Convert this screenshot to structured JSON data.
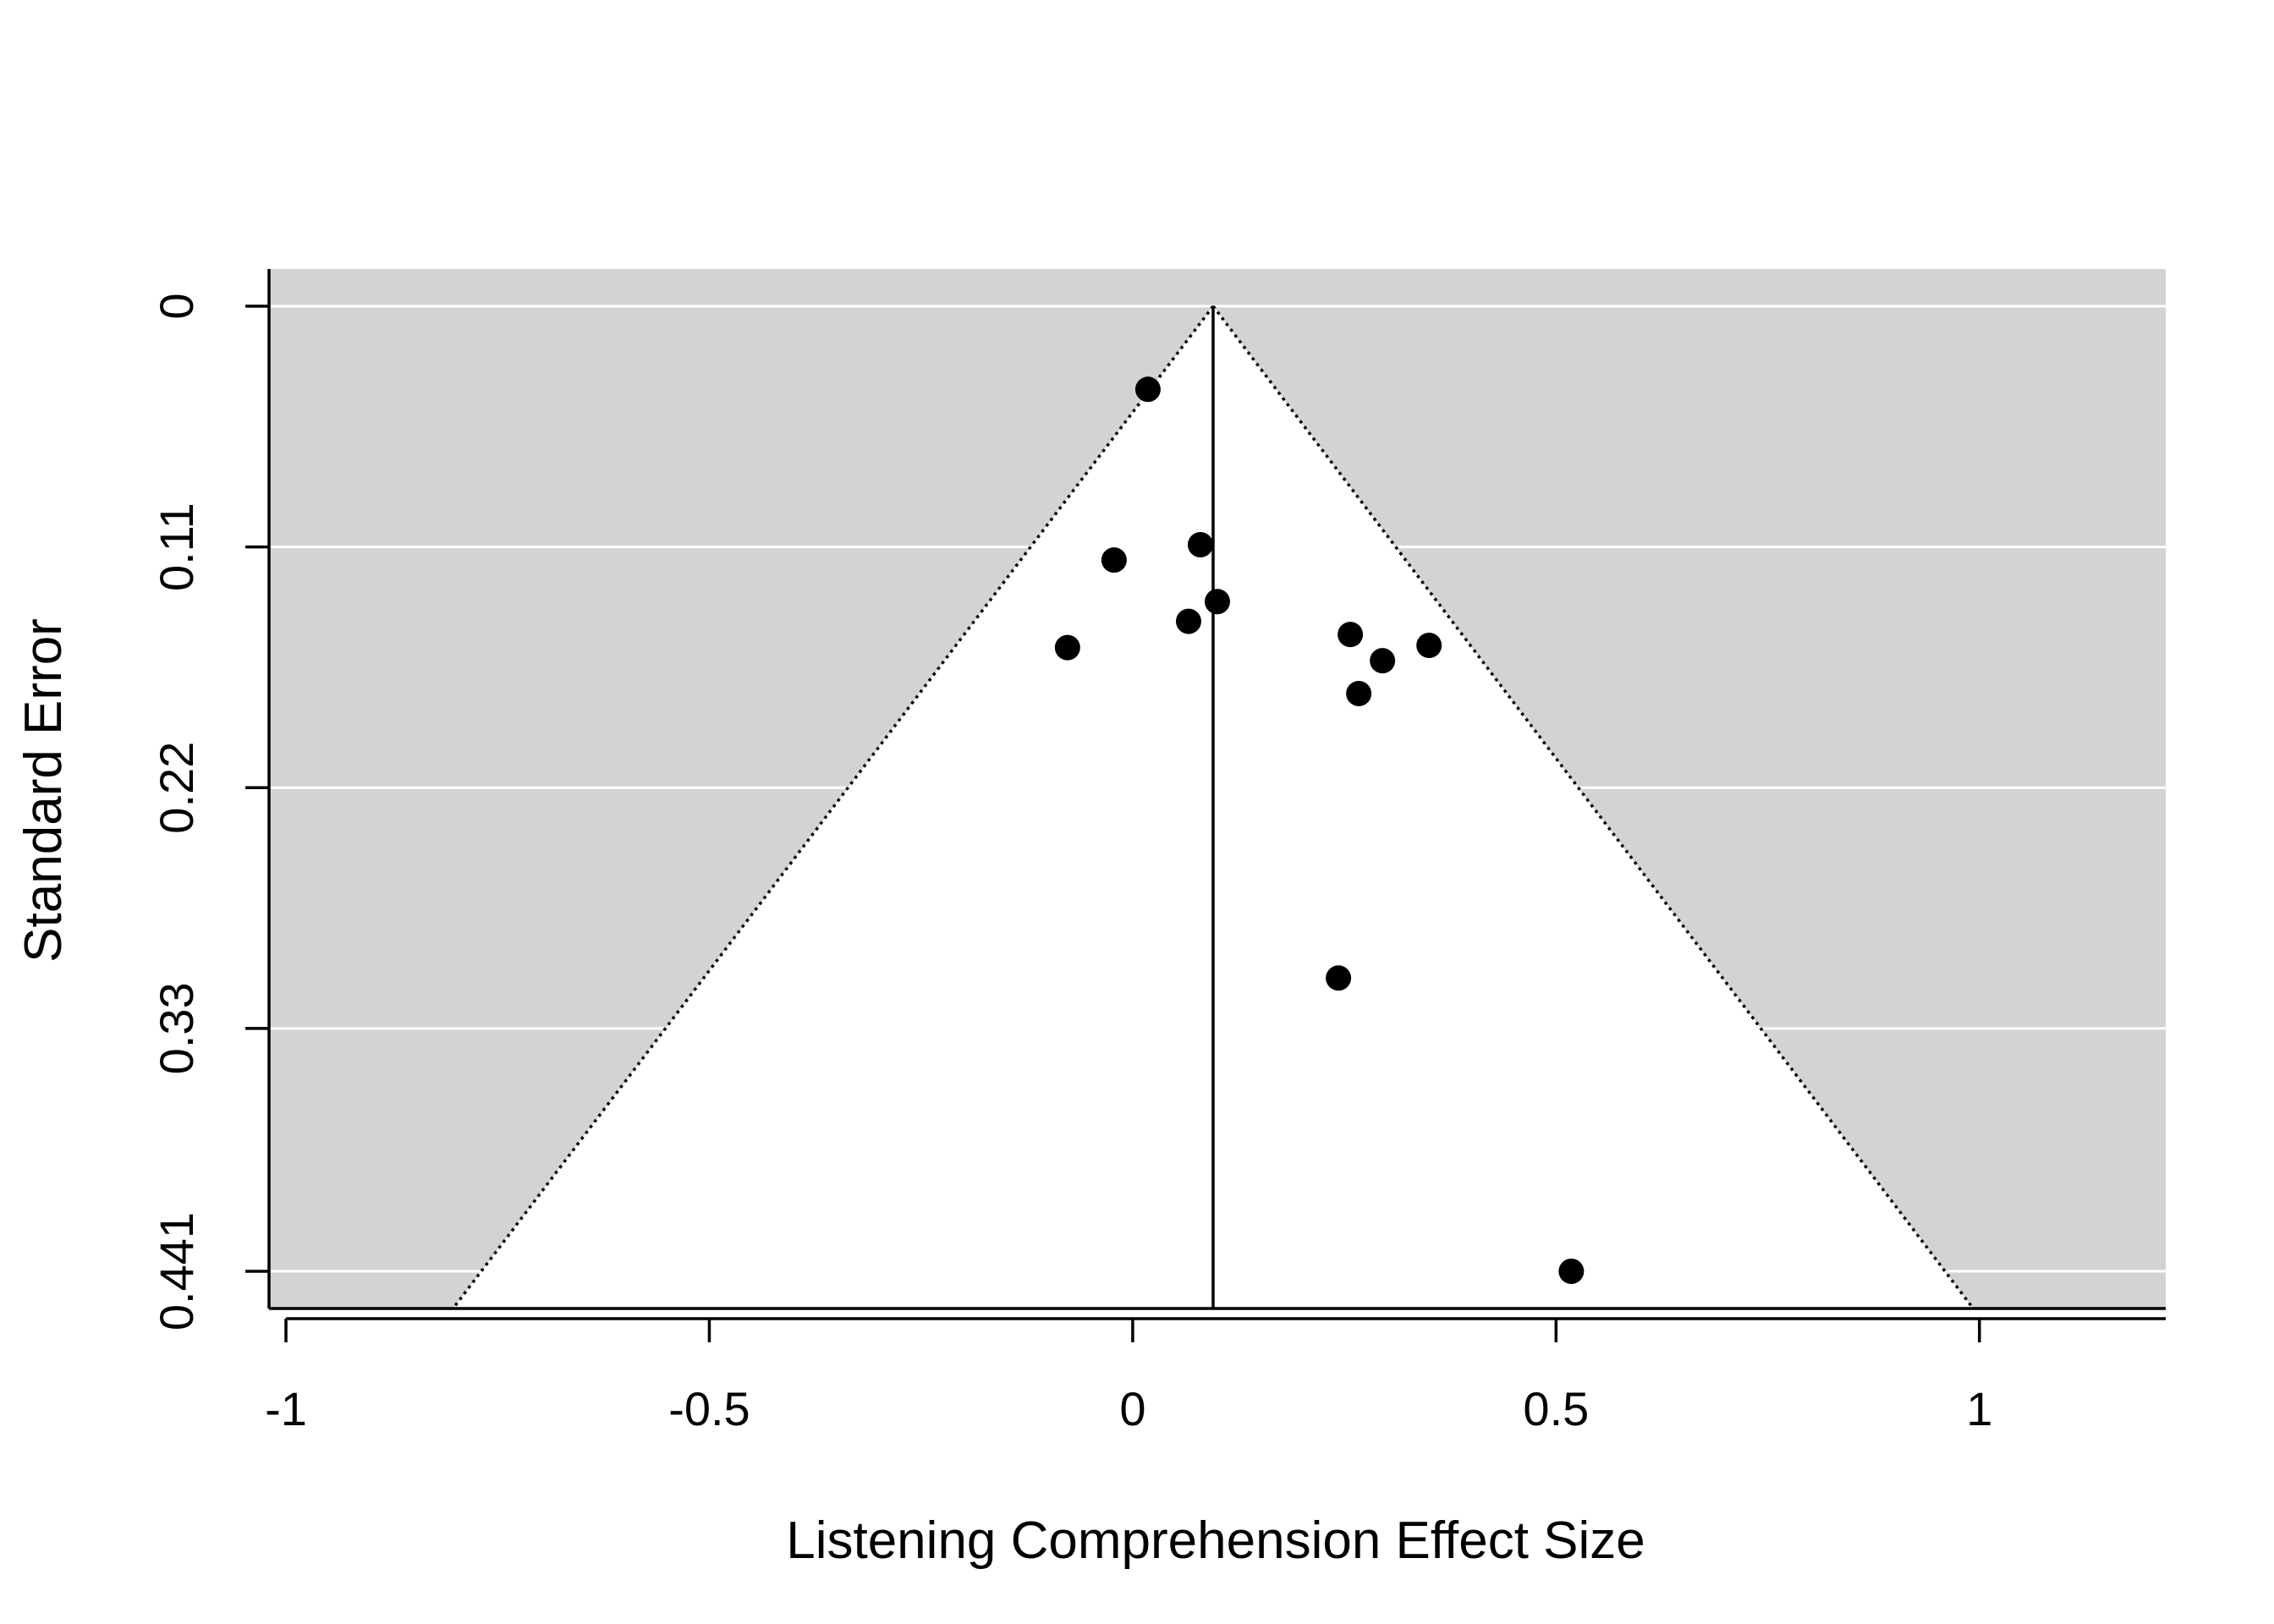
{
  "chart_data": {
    "type": "scatter",
    "subtype": "funnel-plot",
    "xlabel": "Listening Comprehension Effect Size",
    "ylabel": "Standard Error",
    "xlim": [
      -1.02,
      1.22
    ],
    "ylim": [
      0.458,
      -0.017
    ],
    "y_reversed": true,
    "x_ticks": [
      -1,
      -0.5,
      0,
      0.5,
      1
    ],
    "x_tick_labels": [
      "-1",
      "-0.5",
      "0",
      "0.5",
      "1"
    ],
    "y_ticks": [
      0,
      0.11,
      0.22,
      0.33,
      0.441
    ],
    "y_tick_labels": [
      "0",
      "0.11",
      "0.22",
      "0.33",
      "0.441"
    ],
    "grid": "horizontal",
    "summary_effect": 0.095,
    "funnel_multiplier": 1.96,
    "funnel_se_max": 0.458,
    "colors": {
      "panel_background": "#d3d3d3",
      "funnel_fill": "#ffffff",
      "grid": "#ffffff",
      "points": "#000000",
      "lines": "#000000"
    },
    "points": [
      {
        "x": 0.018,
        "y": 0.038
      },
      {
        "x": 0.08,
        "y": 0.109
      },
      {
        "x": -0.022,
        "y": 0.116
      },
      {
        "x": 0.1,
        "y": 0.135
      },
      {
        "x": 0.066,
        "y": 0.144
      },
      {
        "x": -0.077,
        "y": 0.156
      },
      {
        "x": 0.257,
        "y": 0.15
      },
      {
        "x": 0.35,
        "y": 0.155
      },
      {
        "x": 0.295,
        "y": 0.162
      },
      {
        "x": 0.267,
        "y": 0.177
      },
      {
        "x": 0.243,
        "y": 0.307
      },
      {
        "x": 0.518,
        "y": 0.441
      }
    ]
  }
}
